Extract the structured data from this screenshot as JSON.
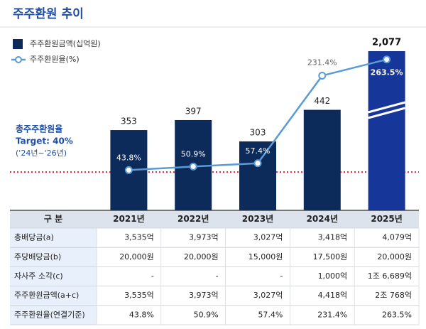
{
  "chart_data": {
    "type": "bar_line",
    "title": "주주환원 추이",
    "categories": [
      "2021년",
      "2022년",
      "2023년",
      "2024년",
      "2025년"
    ],
    "series": [
      {
        "name": "주주환원금액(십억원)",
        "type": "bar",
        "color": "#0d2b5a",
        "colors": [
          "#0d2b5a",
          "#0d2b5a",
          "#0d2b5a",
          "#0d2b5a",
          "#17369a"
        ],
        "values": [
          353,
          397,
          303,
          442,
          2077
        ],
        "value_labels": [
          "353",
          "397",
          "303",
          "442",
          "2,077"
        ]
      },
      {
        "name": "주주환원율(%)",
        "type": "line",
        "axis": "y2",
        "color": "#5b9bd5",
        "values": [
          43.8,
          50.9,
          57.4,
          231.4,
          263.5
        ],
        "value_labels": [
          "43.8%",
          "50.9%",
          "57.4%",
          "231.4%",
          "263.5%"
        ]
      }
    ],
    "ylim": [
      0,
      700
    ],
    "y2lim": [
      -36,
      280
    ],
    "target": 40,
    "target_color": "#e0262b",
    "annotation": [
      "총주주환원율",
      "Target: 40%",
      "('24년~'26년)"
    ]
  },
  "table": {
    "header": "구 분",
    "rows": [
      {
        "label": "총배당금(a)",
        "values": [
          "3,535억",
          "3,973억",
          "3,027억",
          "3,418억",
          "4,079억"
        ]
      },
      {
        "label": "주당배당금(b)",
        "values": [
          "20,000원",
          "20,000원",
          "15,000원",
          "17,500원",
          "20,000원"
        ]
      },
      {
        "label": "자사주 소각(c)",
        "values": [
          "-",
          "-",
          "-",
          "1,000억",
          "1조 6,689억"
        ]
      },
      {
        "label": "주주환원금액(a+c)",
        "values": [
          "3,535억",
          "3,973억",
          "3,027억",
          "4,418억",
          "2조 768억"
        ]
      },
      {
        "label": "주주환원율(연결기준)",
        "values": [
          "43.8%",
          "50.9%",
          "57.4%",
          "231.4%",
          "263.5%"
        ]
      }
    ]
  }
}
